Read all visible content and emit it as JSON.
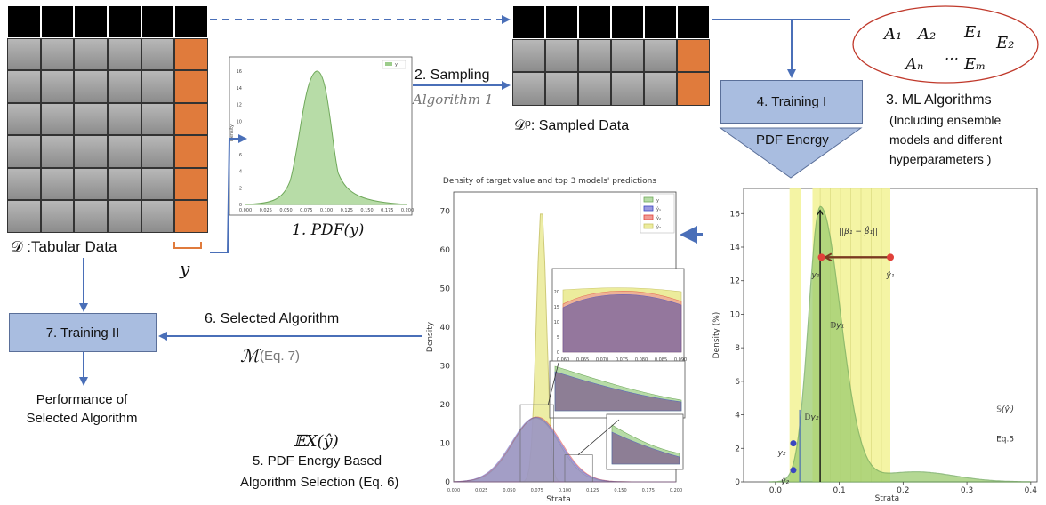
{
  "tabular": {
    "caption": "𝒟 :Tabular Data",
    "y_label": "y"
  },
  "pdf_small": {
    "caption": "1. PDF(y)",
    "legend": "y",
    "ylabel": "Density",
    "yticks": [
      "0",
      "2",
      "4",
      "6",
      "8",
      "10",
      "12",
      "14",
      "16"
    ],
    "xticks": [
      "0.000",
      "0.025",
      "0.050",
      "0.075",
      "0.100",
      "0.125",
      "0.150",
      "0.175",
      "0.200"
    ]
  },
  "sampling": {
    "label": "2. Sampling",
    "algorithm": "Algorithm 1"
  },
  "sampled": {
    "caption": "𝒟ᵖ: Sampled Data"
  },
  "ml_algorithms": {
    "items": [
      "A₁",
      "A₂",
      "E₁",
      "E₂",
      "Aₙ",
      "…",
      "Eₘ"
    ],
    "title": "3. ML Algorithms",
    "desc_lines": [
      "(Including ensemble",
      "models and different",
      "hyperparameters )"
    ]
  },
  "training1": {
    "label": "4. Training I",
    "energy": "PDF Energy"
  },
  "main_chart": {
    "title": "Density of target value and top 3 models' predictions",
    "xlabel": "Strata",
    "ylabel": "Density",
    "yticks": [
      "0",
      "10",
      "20",
      "30",
      "40",
      "50",
      "60",
      "70"
    ],
    "xticks": [
      "0.000",
      "0.025",
      "0.050",
      "0.075",
      "0.100",
      "0.125",
      "0.150",
      "0.175",
      "0.200"
    ],
    "legend": [
      "y",
      "ŷ₁",
      "ŷ₂",
      "ŷ₃"
    ],
    "inset1_yticks": [
      "0",
      "5",
      "10",
      "15",
      "20"
    ],
    "inset1_xticks": [
      "0.060",
      "0.065",
      "0.070",
      "0.075",
      "0.080",
      "0.085",
      "0.090"
    ]
  },
  "energy_chart": {
    "ylabel": "Density (%)",
    "xlabel": "Strata",
    "yticks": [
      "0",
      "2",
      "4",
      "6",
      "8",
      "10",
      "12",
      "14",
      "16"
    ],
    "xticks": [
      "0.0",
      "0.1",
      "0.2",
      "0.3",
      "0.4"
    ],
    "beta": "||β₁ − β̂₁||",
    "y1": "y₁",
    "y1hat": "ŷ₁",
    "y2": "y₂",
    "y2hat": "ŷ₂",
    "d1": "𝔻y₁",
    "d2": "𝔻y₂",
    "s_label": "𝕊(ŷᵢ)",
    "eq": "Eq.5"
  },
  "selected": {
    "label": "6. Selected Algorithm",
    "m": "ℳ",
    "eq": "(Eq. 7)"
  },
  "training2": {
    "label": "7. Training II"
  },
  "performance": {
    "line1": "Performance of",
    "line2": "Selected Algorithm"
  },
  "step5": {
    "ex": "𝔼X(ŷ)",
    "line1": "5. PDF Energy Based",
    "line2": "Algorithm Selection (Eq. 6)"
  },
  "colors": {
    "orange": "#e07b3c",
    "box_blue": "#a9bde0",
    "arrow_blue": "#4a6fb8",
    "green": "#8fc47a",
    "red": "#e0413a",
    "yellow": "#f1f08a",
    "olive": "#c9c56a"
  }
}
